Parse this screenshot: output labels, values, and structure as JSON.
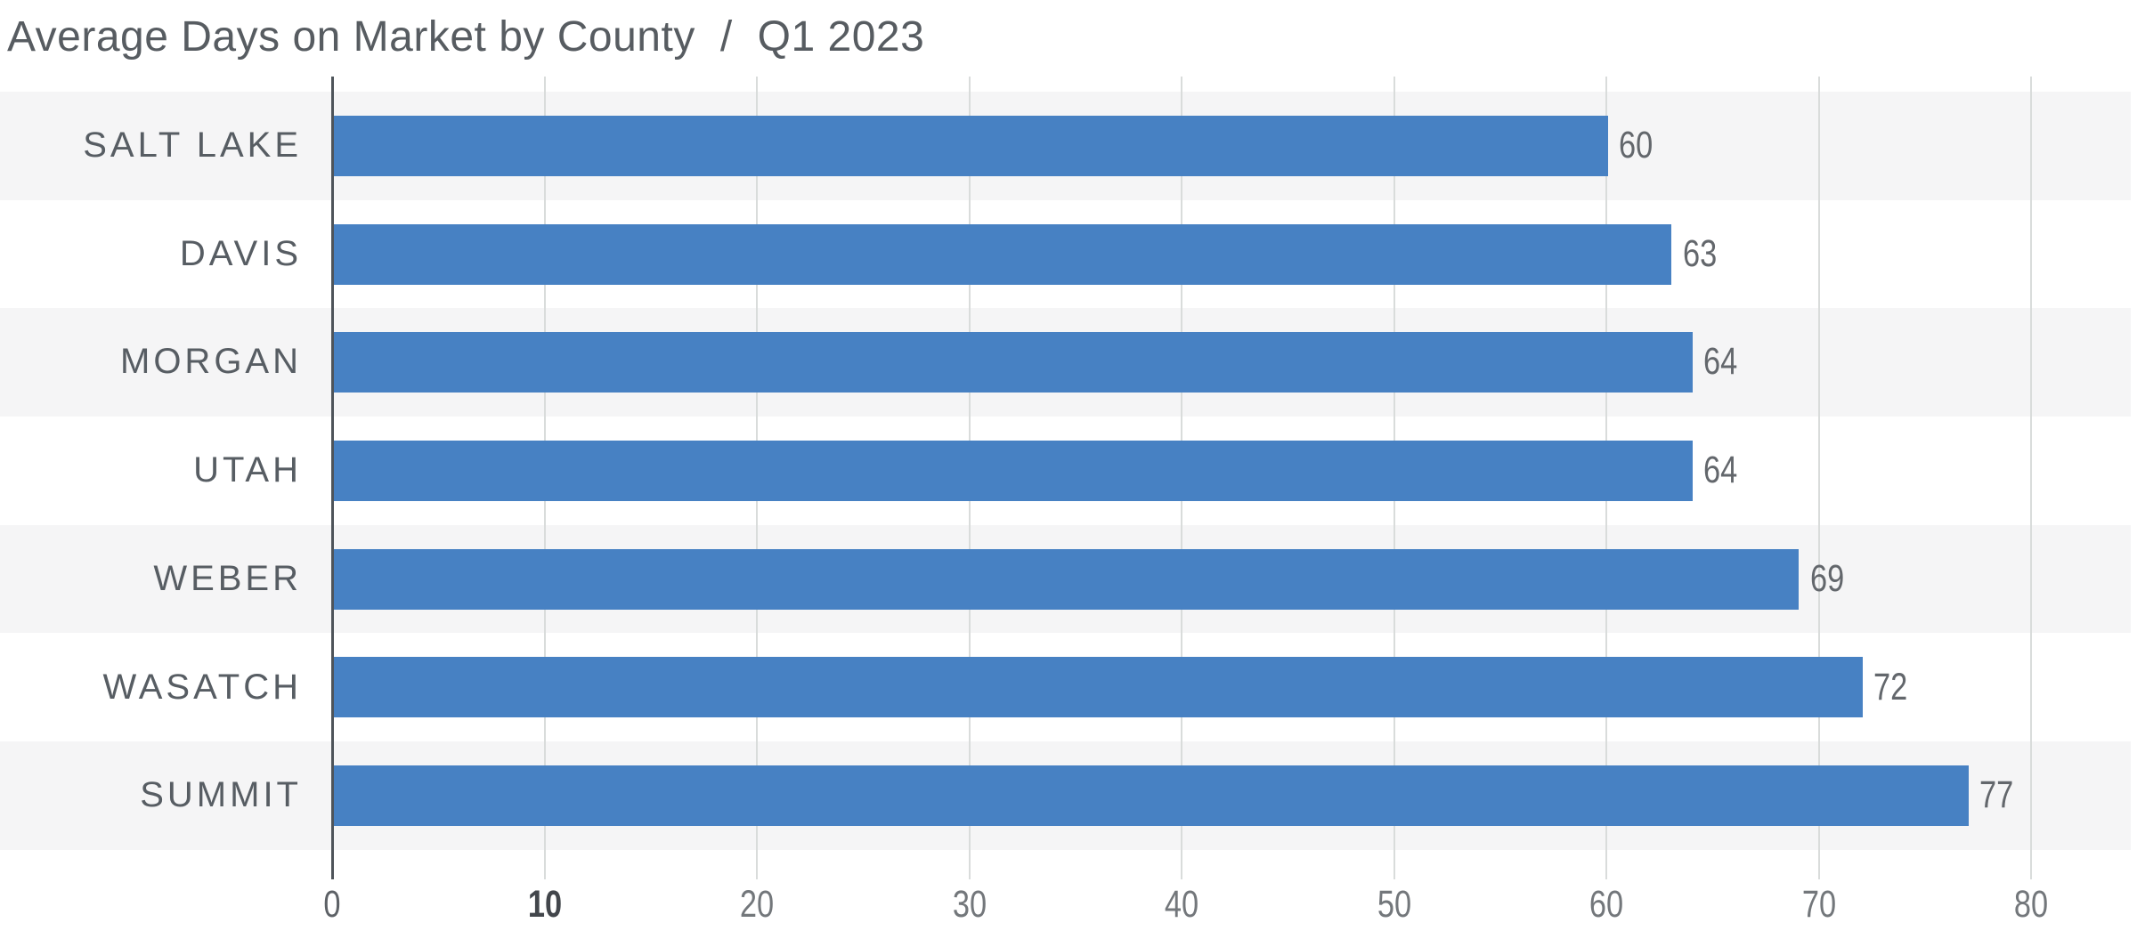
{
  "title": {
    "main": "Average Days on Market by County",
    "separator": "/",
    "period": "Q1 2023"
  },
  "chart_data": {
    "type": "bar",
    "orientation": "horizontal",
    "title": "Average Days on Market by County / Q1 2023",
    "categories": [
      "SALT LAKE",
      "DAVIS",
      "MORGAN",
      "UTAH",
      "WEBER",
      "WASATCH",
      "SUMMIT"
    ],
    "values": [
      60,
      63,
      64,
      64,
      69,
      72,
      77
    ],
    "value_labels": [
      "60",
      "63",
      "64",
      "64",
      "69",
      "72",
      "77"
    ],
    "xlabel": "",
    "ylabel": "",
    "x_ticks": [
      0,
      10,
      20,
      30,
      40,
      50,
      60,
      70,
      80
    ],
    "xlim": [
      0,
      85
    ],
    "grid": true,
    "legend": false,
    "row_striping": "alternating, first row shaded",
    "colors": {
      "bar": "#4781c3",
      "row_stripe": "#f5f5f6",
      "axis_line": "#4e545a",
      "gridline": "#d9dcdb",
      "category_label": "#575d63",
      "value_label": "#63676c",
      "tick_label": "#73777b",
      "tick_label_zero": "#5d6166",
      "tick_label_bold": "#42464b",
      "title": "#575c61"
    },
    "tick_bold_value": 10
  }
}
